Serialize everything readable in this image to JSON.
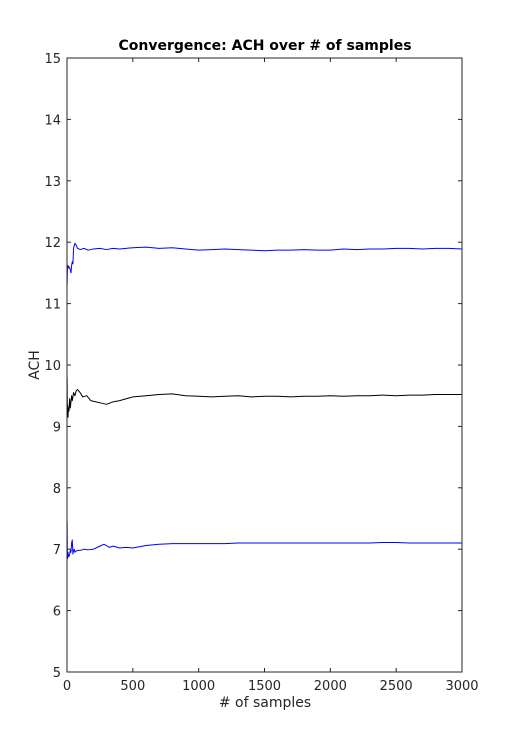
{
  "chart_data": {
    "type": "line",
    "title": "Convergence: ACH over # of samples",
    "xlabel": "# of samples",
    "ylabel": "ACH",
    "xlim": [
      0,
      3000
    ],
    "ylim": [
      5,
      15
    ],
    "xticks": [
      0,
      500,
      1000,
      1500,
      2000,
      2500,
      3000
    ],
    "yticks": [
      5,
      6,
      7,
      8,
      9,
      10,
      11,
      12,
      13,
      14,
      15
    ],
    "grid": false,
    "legend": "none",
    "series": [
      {
        "color": "#0000ff",
        "x": [
          1,
          3,
          5,
          8,
          10,
          15,
          20,
          25,
          30,
          35,
          40,
          45,
          50,
          55,
          60,
          70,
          80,
          100,
          130,
          160,
          200,
          250,
          300,
          350,
          400,
          450,
          500,
          600,
          700,
          800,
          900,
          1000,
          1100,
          1200,
          1300,
          1400,
          1500,
          1600,
          1700,
          1800,
          1900,
          2000,
          2100,
          2200,
          2300,
          2400,
          2500,
          2600,
          2700,
          2800,
          2900,
          3000
        ],
        "y": [
          11.3,
          11.55,
          11.6,
          11.62,
          11.58,
          11.6,
          11.58,
          11.55,
          11.5,
          11.62,
          11.68,
          11.65,
          11.9,
          11.95,
          11.98,
          11.95,
          11.9,
          11.88,
          11.9,
          11.87,
          11.89,
          11.9,
          11.88,
          11.9,
          11.89,
          11.9,
          11.91,
          11.92,
          11.9,
          11.91,
          11.89,
          11.87,
          11.88,
          11.89,
          11.88,
          11.87,
          11.86,
          11.87,
          11.87,
          11.88,
          11.87,
          11.87,
          11.89,
          11.88,
          11.89,
          11.89,
          11.9,
          11.9,
          11.89,
          11.9,
          11.9,
          11.89
        ]
      },
      {
        "color": "#000000",
        "x": [
          1,
          3,
          5,
          8,
          10,
          15,
          20,
          25,
          30,
          35,
          40,
          50,
          60,
          70,
          80,
          100,
          120,
          150,
          180,
          220,
          260,
          300,
          350,
          400,
          450,
          500,
          600,
          700,
          800,
          900,
          1000,
          1100,
          1200,
          1300,
          1400,
          1500,
          1600,
          1700,
          1800,
          1900,
          2000,
          2100,
          2200,
          2300,
          2400,
          2500,
          2600,
          2700,
          2800,
          2900,
          3000
        ],
        "y": [
          9.8,
          9.2,
          9.35,
          9.15,
          9.3,
          9.25,
          9.45,
          9.3,
          9.4,
          9.5,
          9.42,
          9.55,
          9.5,
          9.58,
          9.6,
          9.55,
          9.48,
          9.5,
          9.42,
          9.4,
          9.38,
          9.36,
          9.4,
          9.42,
          9.45,
          9.48,
          9.5,
          9.52,
          9.53,
          9.5,
          9.49,
          9.48,
          9.49,
          9.5,
          9.48,
          9.49,
          9.49,
          9.48,
          9.49,
          9.49,
          9.5,
          9.49,
          9.5,
          9.5,
          9.51,
          9.5,
          9.51,
          9.51,
          9.52,
          9.52,
          9.52
        ]
      },
      {
        "color": "#0000ff",
        "x": [
          1,
          3,
          5,
          8,
          10,
          15,
          20,
          25,
          30,
          35,
          40,
          45,
          50,
          55,
          60,
          70,
          80,
          100,
          130,
          160,
          200,
          250,
          280,
          300,
          320,
          350,
          400,
          450,
          500,
          600,
          700,
          800,
          900,
          1000,
          1100,
          1200,
          1300,
          1400,
          1500,
          1600,
          1700,
          1800,
          1900,
          2000,
          2100,
          2200,
          2300,
          2400,
          2500,
          2600,
          2700,
          2800,
          2900,
          3000
        ],
        "y": [
          7.45,
          6.9,
          6.85,
          6.95,
          6.9,
          6.88,
          6.92,
          6.98,
          6.95,
          7.1,
          7.15,
          6.92,
          6.98,
          7.0,
          6.95,
          6.97,
          6.98,
          6.98,
          7.0,
          6.99,
          7.0,
          7.05,
          7.08,
          7.06,
          7.03,
          7.05,
          7.02,
          7.03,
          7.02,
          7.06,
          7.08,
          7.09,
          7.09,
          7.09,
          7.09,
          7.09,
          7.1,
          7.1,
          7.1,
          7.1,
          7.1,
          7.1,
          7.1,
          7.1,
          7.1,
          7.1,
          7.1,
          7.11,
          7.11,
          7.1,
          7.1,
          7.1,
          7.1,
          7.1
        ]
      }
    ]
  }
}
